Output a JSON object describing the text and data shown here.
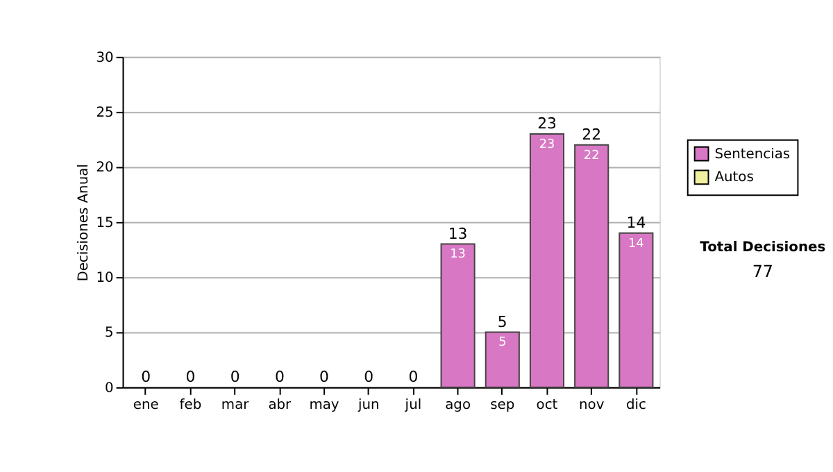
{
  "chart_data": {
    "type": "bar",
    "stacked": true,
    "ylabel": "Decisiones Anual",
    "categories": [
      "ene",
      "feb",
      "mar",
      "abr",
      "may",
      "jun",
      "jul",
      "ago",
      "sep",
      "oct",
      "nov",
      "dic"
    ],
    "series": [
      {
        "name": "Sentencias",
        "color": "#d877c4",
        "values": [
          0,
          0,
          0,
          0,
          0,
          0,
          0,
          13,
          5,
          23,
          22,
          14
        ],
        "value_labels": [
          null,
          null,
          null,
          null,
          null,
          null,
          null,
          "13",
          "5",
          "23",
          "22",
          "14"
        ]
      },
      {
        "name": "Autos",
        "color": "#f0f0a0",
        "values": [
          0,
          0,
          0,
          0,
          0,
          0,
          0,
          0,
          0,
          0,
          0,
          0
        ]
      }
    ],
    "totals": [
      "0",
      "0",
      "0",
      "0",
      "0",
      "0",
      "0",
      "13",
      "5",
      "23",
      "22",
      "14"
    ],
    "ylim": [
      0,
      30
    ],
    "yticks": [
      0,
      5,
      10,
      15,
      20,
      25,
      30
    ],
    "grid": "y",
    "legend": "right",
    "annotations": [
      "Total Decisiones",
      "77"
    ]
  }
}
